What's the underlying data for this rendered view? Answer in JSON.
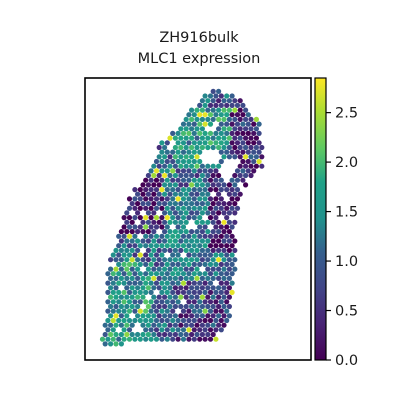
{
  "chart_data": {
    "type": "scatter",
    "title_lines": [
      "ZH916bulk",
      "MLC1 expression"
    ],
    "xlabel": "",
    "ylabel": "",
    "colormap": "viridis",
    "colorbar": {
      "range": [
        0.0,
        2.85
      ],
      "ticks": [
        0.0,
        0.5,
        1.0,
        1.5,
        2.0,
        2.5
      ],
      "tick_labels": [
        "0.0",
        "0.5",
        "1.0",
        "1.5",
        "2.0",
        "2.5"
      ]
    },
    "axes_visible": false,
    "grid": false,
    "spot_region": {
      "description_free": true,
      "outline": [
        [
          0.55,
          0.035
        ],
        [
          0.68,
          0.07
        ],
        [
          0.735,
          0.12
        ],
        [
          0.78,
          0.17
        ],
        [
          0.785,
          0.32
        ],
        [
          0.74,
          0.34
        ],
        [
          0.735,
          0.37
        ],
        [
          0.69,
          0.4
        ],
        [
          0.66,
          0.53
        ],
        [
          0.67,
          0.62
        ],
        [
          0.64,
          0.87
        ],
        [
          0.6,
          0.91
        ],
        [
          0.58,
          0.935
        ],
        [
          0.06,
          0.945
        ],
        [
          0.09,
          0.87
        ],
        [
          0.1,
          0.67
        ],
        [
          0.14,
          0.58
        ],
        [
          0.2,
          0.42
        ],
        [
          0.3,
          0.3
        ],
        [
          0.34,
          0.22
        ],
        [
          0.42,
          0.18
        ],
        [
          0.46,
          0.12
        ]
      ],
      "holes": [
        {
          "cx": 0.56,
          "cy": 0.28,
          "rx": 0.05,
          "ry": 0.03
        },
        {
          "cx": 0.63,
          "cy": 0.32,
          "rx": 0.035,
          "ry": 0.035
        },
        {
          "cx": 0.23,
          "cy": 0.88,
          "rx": 0.02,
          "ry": 0.02
        },
        {
          "cx": 0.47,
          "cy": 0.52,
          "rx": 0.018,
          "ry": 0.018
        }
      ],
      "bands": [
        {
          "x0": 0.0,
          "x1": 0.35,
          "y0": 0.34,
          "y1": 0.55,
          "level": 0.35
        },
        {
          "x0": 0.55,
          "x1": 0.8,
          "y0": 0.08,
          "y1": 0.42,
          "level": 0.55
        },
        {
          "x0": 0.4,
          "x1": 0.65,
          "y0": 0.1,
          "y1": 0.32,
          "level": 1.55
        },
        {
          "x0": 0.35,
          "x1": 0.6,
          "y0": 0.42,
          "y1": 0.7,
          "level": 1.25
        },
        {
          "x0": 0.05,
          "x1": 0.3,
          "y0": 0.65,
          "y1": 0.95,
          "level": 1.55
        },
        {
          "x0": 0.4,
          "x1": 0.65,
          "y0": 0.72,
          "y1": 0.95,
          "level": 0.65
        },
        {
          "x0": 0.55,
          "x1": 0.7,
          "y0": 0.42,
          "y1": 0.62,
          "level": 0.3
        }
      ],
      "base_level": 1.05
    }
  }
}
